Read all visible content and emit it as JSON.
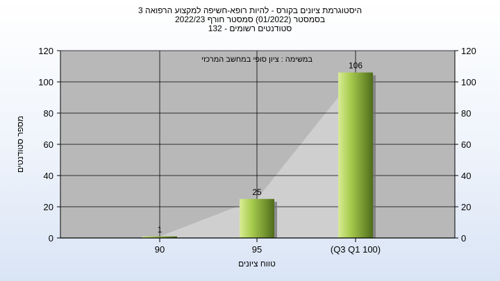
{
  "chart_data": {
    "type": "bar",
    "title_lines": [
      "היסטוגרמת ציונים בקורס - להיות רופא-חשיפה למקצוע הרפואה 3",
      "בסמסטר  (01/2022)  סמסטר חורף  2022/23",
      "סטודנטים רשומים - 132"
    ],
    "subtitle": "במשימה : ציון סופי במחשב המרכזי",
    "categories": [
      "90",
      "95",
      "(Q3 Q1 100)"
    ],
    "values": [
      1,
      25,
      106
    ],
    "xlabel": "טווח ציונים",
    "ylabel": "מספר סטודנטים",
    "ylim": [
      0,
      120
    ],
    "yticks": [
      0,
      20,
      40,
      60,
      80,
      100,
      120
    ],
    "grid": true,
    "legend": "none",
    "colors": {
      "plot_bg": "#b8b8b8",
      "bar_light": "#d8ec96",
      "bar_mid": "#a8cc4e",
      "bar_dark": "#4f6c1a",
      "trend_fill": "#cfcfcf"
    }
  }
}
